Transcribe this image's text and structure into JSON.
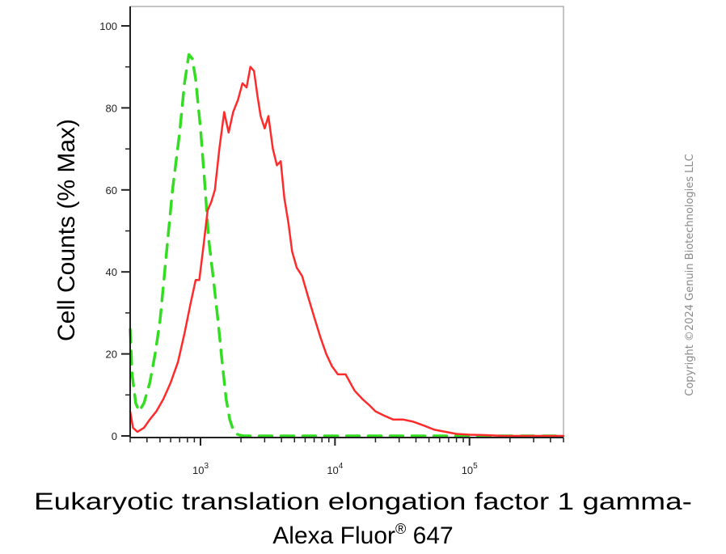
{
  "chart_data": {
    "type": "line",
    "xscale": "log",
    "xlim": [
      300,
      500000
    ],
    "ylim": [
      0,
      100
    ],
    "grid": false,
    "ylabel": "Cell Counts (% Max)",
    "xlabel_line1": "Eukaryotic translation elongation factor 1 gamma-",
    "xlabel_line2_main": "Alexa Fluor",
    "xlabel_line2_sup": "®",
    "xlabel_line2_end": " 647",
    "yticks": [
      {
        "value": 0,
        "label": "0"
      },
      {
        "value": 20,
        "label": "20"
      },
      {
        "value": 40,
        "label": "40"
      },
      {
        "value": 60,
        "label": "60"
      },
      {
        "value": 80,
        "label": "80"
      },
      {
        "value": 100,
        "label": "100"
      }
    ],
    "xticks": [
      {
        "value": 1000,
        "base": "10",
        "exp": "3"
      },
      {
        "value": 10000,
        "base": "10",
        "exp": "4"
      },
      {
        "value": 100000,
        "base": "10",
        "exp": "5"
      }
    ],
    "series": [
      {
        "color": "#33dd22",
        "style": "dashed",
        "x": [
          300,
          310,
          330,
          350,
          380,
          420,
          460,
          500,
          560,
          620,
          700,
          760,
          820,
          870,
          920,
          1000,
          1080,
          1150,
          1250,
          1350,
          1450,
          1550,
          1650,
          1750,
          1850,
          1950,
          2100,
          2500,
          5000,
          20000,
          100000,
          500000
        ],
        "y": [
          26,
          15,
          8,
          6,
          8,
          13,
          20,
          28,
          45,
          60,
          74,
          86,
          93,
          92,
          87,
          75,
          61,
          48,
          38,
          28,
          18,
          9,
          4,
          1.5,
          0.5,
          0.2,
          0,
          0,
          0,
          0,
          0,
          0
        ]
      },
      {
        "color": "#ff2b2b",
        "style": "solid",
        "x": [
          300,
          315,
          340,
          380,
          420,
          470,
          530,
          600,
          680,
          760,
          840,
          920,
          980,
          1050,
          1130,
          1200,
          1280,
          1380,
          1500,
          1620,
          1750,
          1900,
          2050,
          2200,
          2350,
          2500,
          2650,
          2800,
          3000,
          3200,
          3450,
          3700,
          3950,
          4200,
          4500,
          4800,
          5200,
          5700,
          6300,
          7000,
          7800,
          8600,
          9500,
          10500,
          12000,
          14000,
          16000,
          18000,
          20000,
          23000,
          27000,
          32000,
          38000,
          46000,
          55000,
          66000,
          80000,
          100000,
          130000,
          180000,
          250000,
          500000
        ],
        "y": [
          6,
          2,
          1,
          2,
          4,
          6,
          9,
          13,
          18,
          25,
          32,
          38,
          38,
          46,
          55,
          57,
          60,
          70,
          79,
          74,
          79,
          82,
          86,
          85,
          90,
          89,
          83,
          78,
          75,
          78,
          70,
          66,
          67,
          58,
          52,
          45,
          41,
          39,
          34,
          29,
          24,
          20,
          17,
          15,
          15,
          11,
          9,
          7.5,
          6,
          5,
          4,
          4,
          3.5,
          2.5,
          1.5,
          1,
          0.5,
          0.3,
          0.2,
          0,
          0,
          0
        ]
      }
    ]
  },
  "watermark": "Copyright ©2024 Genuin Biotechnologies LLC"
}
